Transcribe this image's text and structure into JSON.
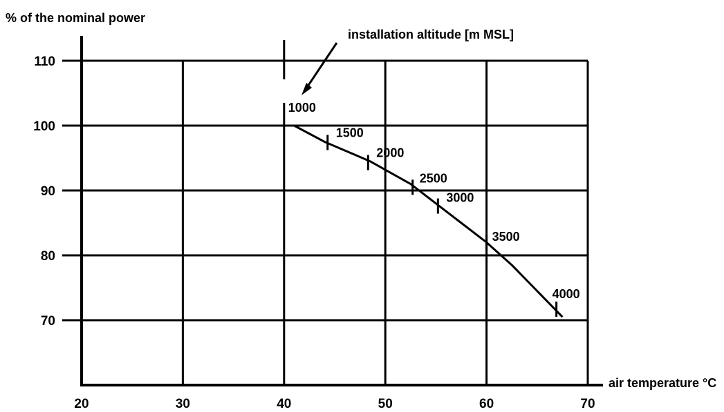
{
  "chart_data": {
    "type": "line",
    "title": "",
    "ylabel": "% of the nominal power",
    "xlabel": "air temperature °C",
    "annotation": "installation altitude [m MSL]",
    "xlim": [
      20,
      70
    ],
    "ylim": [
      60,
      112
    ],
    "x_ticks": [
      20,
      30,
      40,
      50,
      60,
      70
    ],
    "x_tick_labels": [
      "20",
      "30",
      "40",
      "50",
      "60",
      "70"
    ],
    "y_ticks": [
      70,
      80,
      90,
      100,
      110
    ],
    "y_tick_labels": [
      "70",
      "80",
      "90",
      "100",
      "110"
    ],
    "grid": true,
    "legend": "none",
    "series": [
      {
        "x": [
          40,
          41,
          44,
          48.5,
          52.5,
          55,
          57.5,
          60,
          62.5,
          65,
          67.5
        ],
        "y": [
          100,
          100,
          97.5,
          94.5,
          91,
          88,
          85,
          82,
          78.5,
          74.5,
          70.5
        ]
      }
    ],
    "points": [
      {
        "label": "1000",
        "x": 40,
        "y": 100
      },
      {
        "label": "1500",
        "x": 44.3,
        "y": 97.4
      },
      {
        "label": "2000",
        "x": 48.3,
        "y": 94.3
      },
      {
        "label": "2500",
        "x": 52.7,
        "y": 90.5
      },
      {
        "label": "3000",
        "x": 55.2,
        "y": 87.6
      },
      {
        "label": "3500",
        "x": 60,
        "y": 82
      },
      {
        "label": "4000",
        "x": 66.9,
        "y": 71.7
      }
    ]
  }
}
